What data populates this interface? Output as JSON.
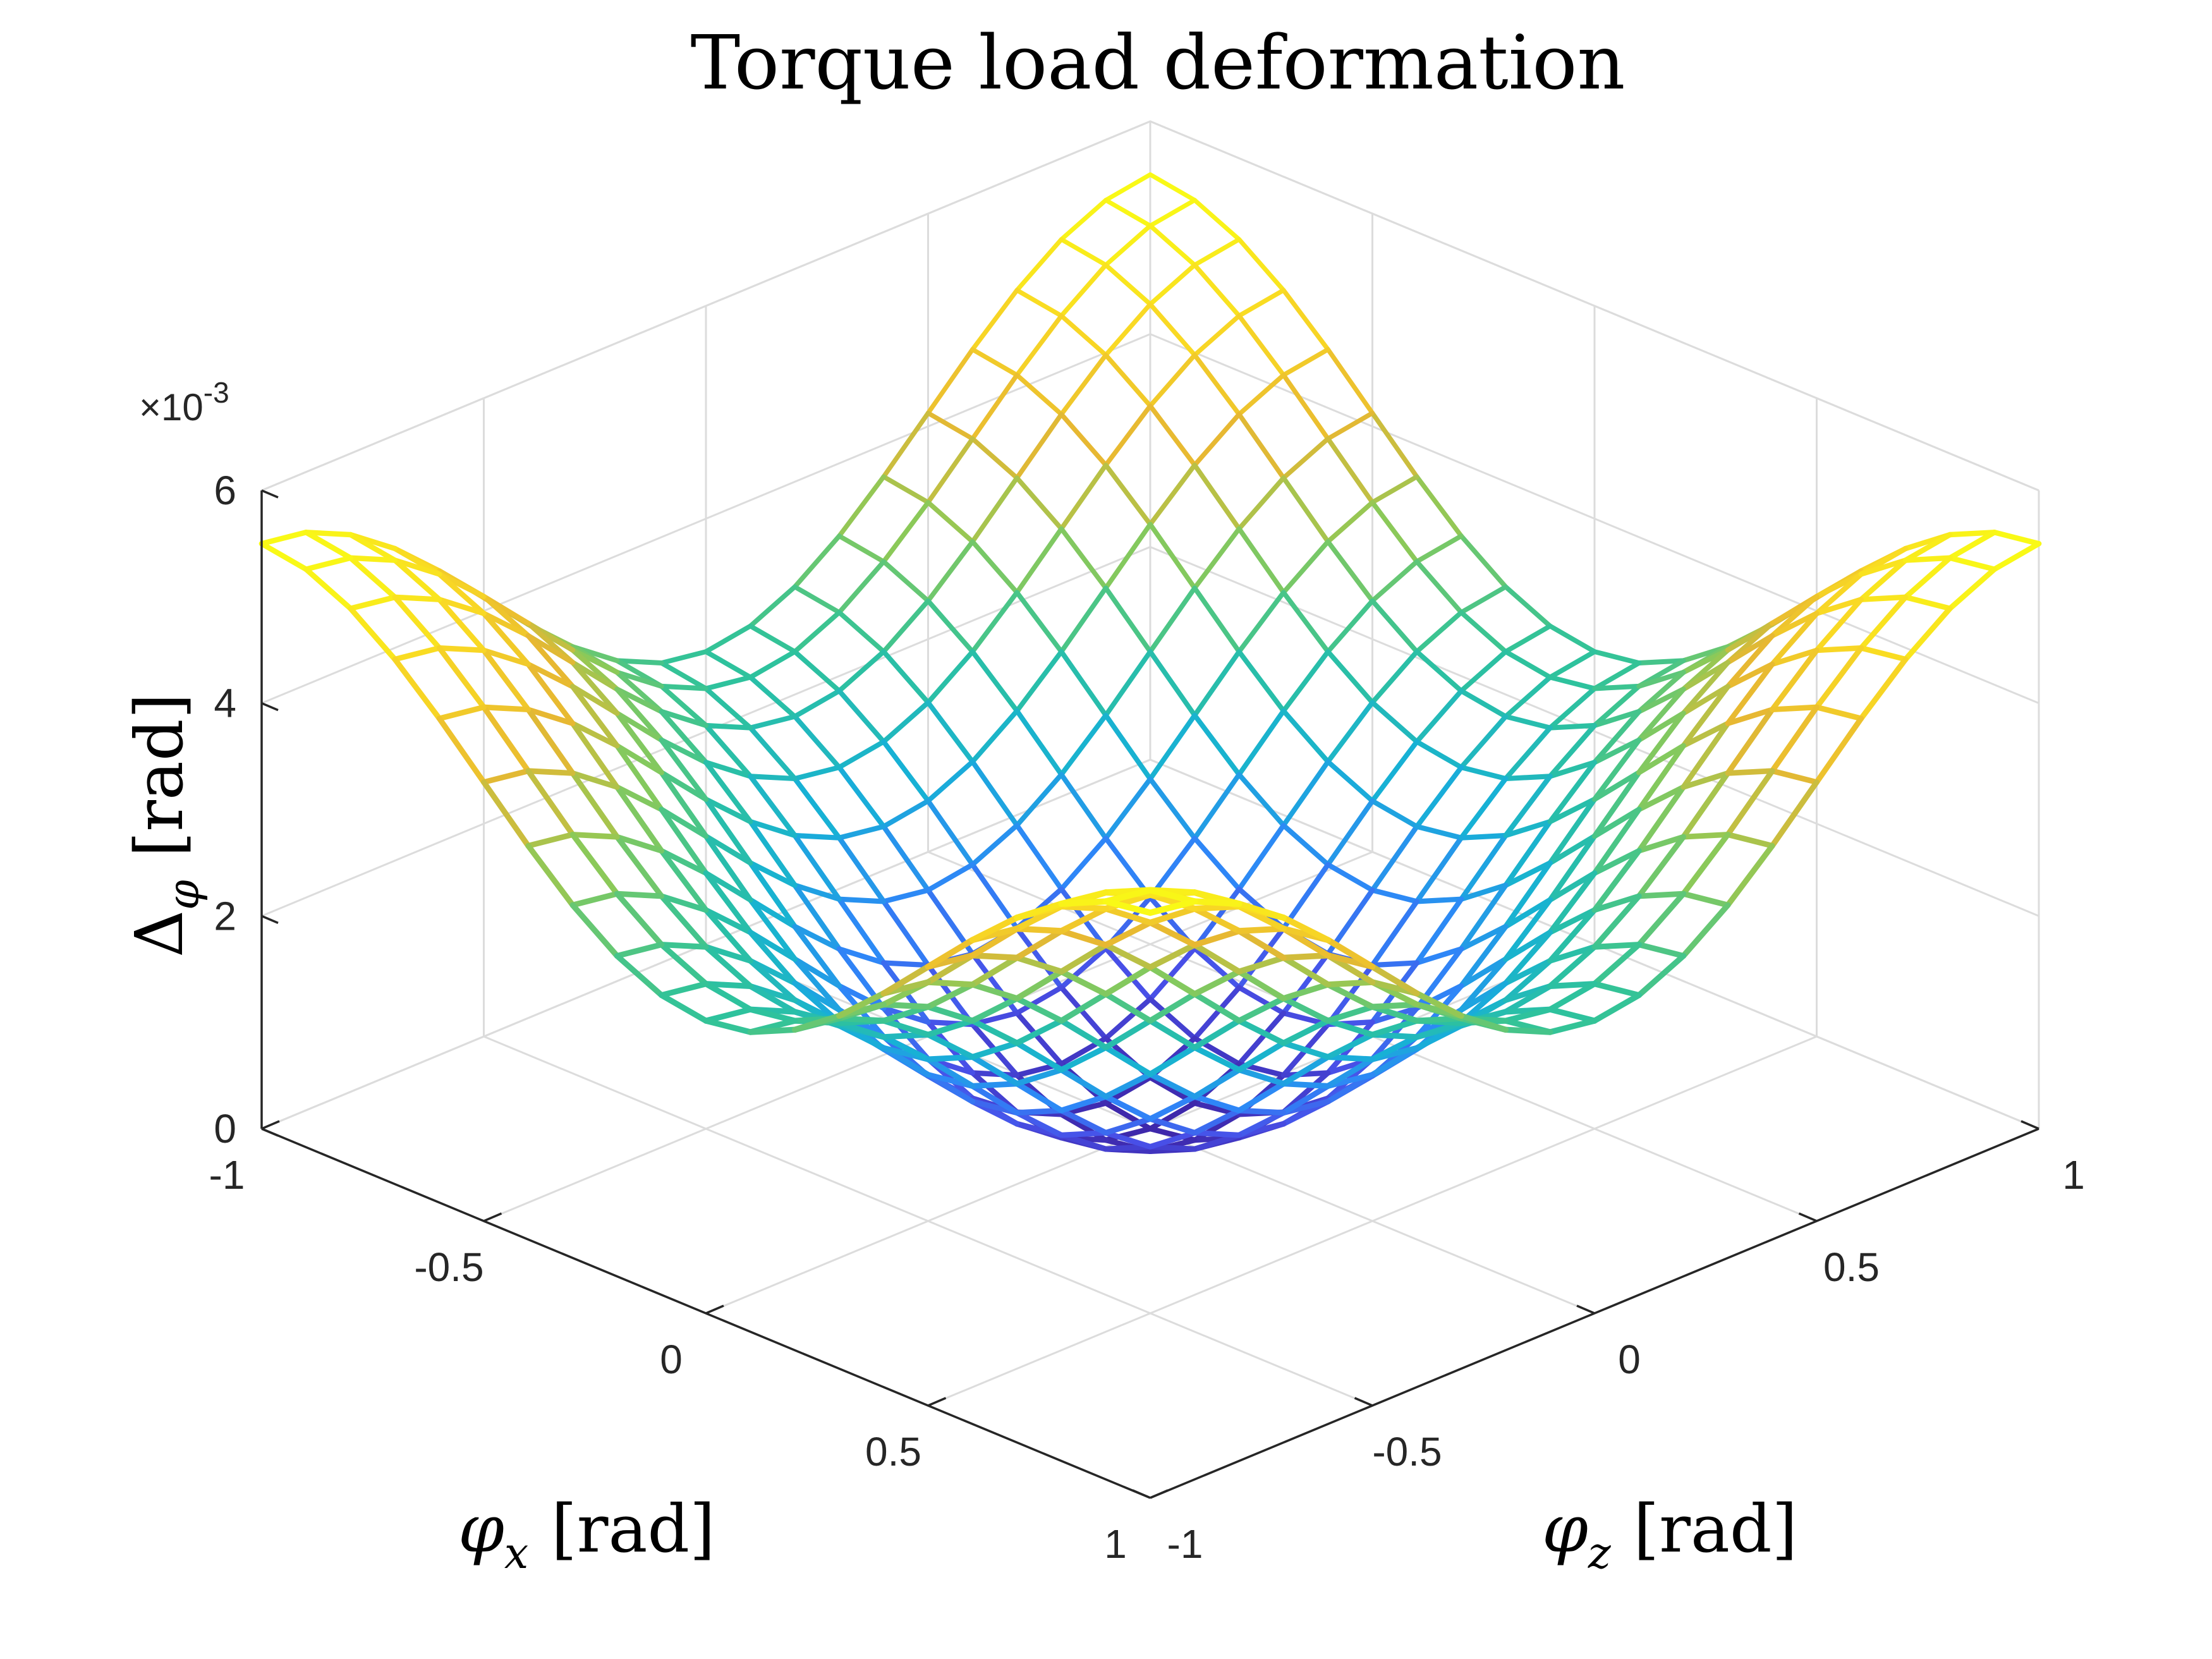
{
  "chart_data": {
    "type": "surface",
    "title": "Torque load deformation",
    "xlabel": {
      "symbol": "φ",
      "subscript": "x",
      "unit": "[rad]"
    },
    "ylabel": {
      "symbol": "φ",
      "subscript": "z",
      "unit": "[rad]"
    },
    "zlabel": {
      "symbol": "Δ",
      "subscript": "φ",
      "unit": "[rad]"
    },
    "xlim": [
      -1,
      1
    ],
    "ylim": [
      -1,
      1
    ],
    "zlim": [
      0,
      0.006
    ],
    "x_ticks": [
      -1,
      -0.5,
      0,
      0.5,
      1
    ],
    "y_ticks": [
      -1,
      -0.5,
      0,
      0.5,
      1
    ],
    "z_ticks": [
      0,
      2,
      4,
      6
    ],
    "x_tick_labels": [
      "-1",
      "-0.5",
      "0",
      "0.5",
      "1"
    ],
    "y_tick_labels": [
      "-1",
      "-0.5",
      "0",
      "0.5",
      "1"
    ],
    "z_tick_labels": [
      "0",
      "2",
      "4",
      "6"
    ],
    "z_multiplier": {
      "base": "×10",
      "exponent": "-3"
    },
    "grid": true,
    "colormap": "parula",
    "colormap_stops": [
      "#3e26a8",
      "#4850e8",
      "#2e87f7",
      "#17b1d5",
      "#2fc39a",
      "#8bc959",
      "#e7b832",
      "#f9d824",
      "#f9fb15"
    ],
    "surface_function": "0.0055 * (sin^2(pi*phi_x/2) + sin^2(pi*phi_z/2)) / 2, fitted to corners: Δ(±1,±1)≈5.5e-3, Δ(±1,0)≈Δ(0,±1)≈2.7e-3, Δ(0,0)≈0",
    "x_samples": [
      -1,
      -0.9,
      -0.8,
      -0.7,
      -0.6,
      -0.5,
      -0.4,
      -0.3,
      -0.2,
      -0.1,
      0,
      0.1,
      0.2,
      0.3,
      0.4,
      0.5,
      0.6,
      0.7,
      0.8,
      0.9,
      1
    ],
    "y_samples": [
      -1,
      -0.9,
      -0.8,
      -0.7,
      -0.6,
      -0.5,
      -0.4,
      -0.3,
      -0.2,
      -0.1,
      0,
      0.1,
      0.2,
      0.3,
      0.4,
      0.5,
      0.6,
      0.7,
      0.8,
      0.9,
      1
    ],
    "z_amplitude": 0.0055
  }
}
